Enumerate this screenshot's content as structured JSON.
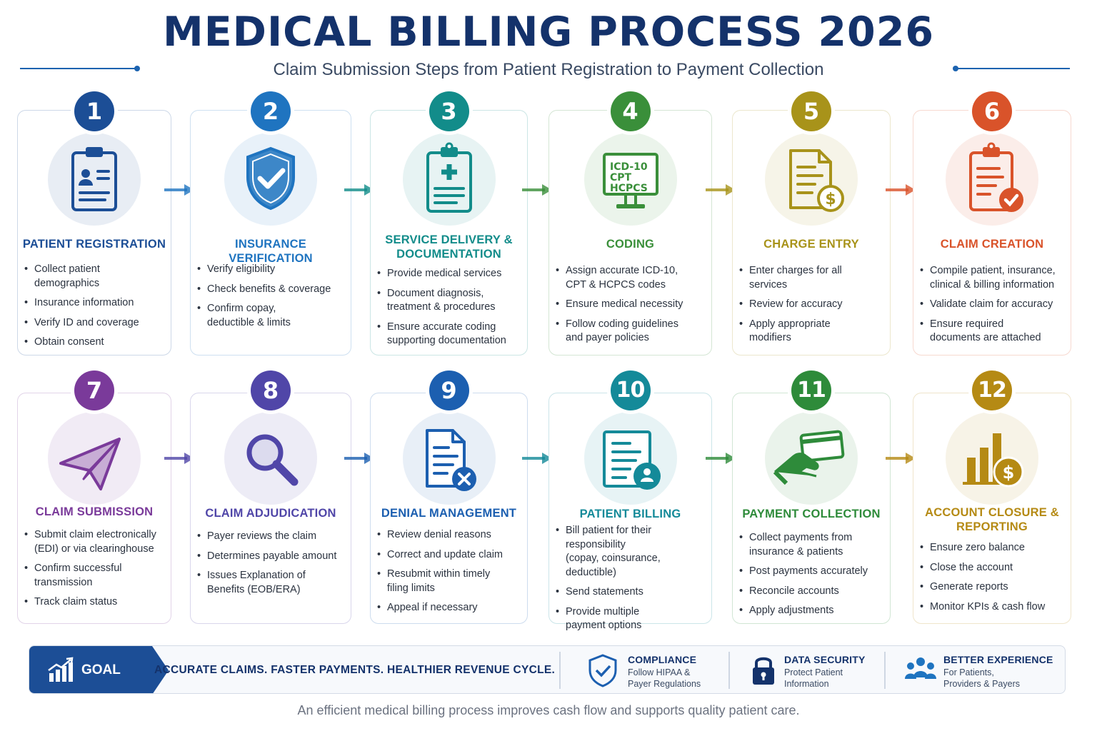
{
  "header": {
    "title": "MEDICAL BILLING PROCESS 2026",
    "subtitle": "Claim Submission Steps from Patient Registration to Payment Collection"
  },
  "steps": [
    {
      "number": "1",
      "title": "PATIENT REGISTRATION",
      "color": "#1c4e96",
      "icon": "clipboard-patient-icon",
      "bullets": [
        "Collect patient demographics",
        "Insurance information",
        "Verify ID and coverage",
        "Obtain consent"
      ]
    },
    {
      "number": "2",
      "title": "INSURANCE VERIFICATION",
      "color": "#1f74c0",
      "icon": "shield-check-icon",
      "bullets": [
        "Verify eligibility",
        "Check benefits & coverage",
        "Confirm copay,\ndeductible & limits"
      ]
    },
    {
      "number": "3",
      "title": "SERVICE DELIVERY &\nDOCUMENTATION",
      "color": "#128c8a",
      "icon": "medical-clipboard-icon",
      "bullets": [
        "Provide medical services",
        "Document diagnosis,\ntreatment & procedures",
        "Ensure accurate coding\nsupporting documentation"
      ]
    },
    {
      "number": "4",
      "title": "CODING",
      "color": "#3a8f3a",
      "icon": "coding-monitor-icon",
      "icon_text": [
        "ICD-10",
        "CPT",
        "HCPCS"
      ],
      "bullets": [
        "Assign accurate ICD-10,\nCPT & HCPCS codes",
        "Ensure medical necessity",
        "Follow coding guidelines\nand payer policies"
      ]
    },
    {
      "number": "5",
      "title": "CHARGE ENTRY",
      "color": "#a8931a",
      "icon": "invoice-dollar-icon",
      "bullets": [
        "Enter charges for all\nservices",
        "Review for accuracy",
        "Apply appropriate\nmodifiers"
      ]
    },
    {
      "number": "6",
      "title": "CLAIM CREATION",
      "color": "#d9532a",
      "icon": "clipboard-check-icon",
      "bullets": [
        "Compile patient, insurance,\nclinical & billing information",
        "Validate claim for accuracy",
        "Ensure required\ndocuments are attached"
      ]
    },
    {
      "number": "7",
      "title": "CLAIM SUBMISSION",
      "color": "#7a3a9a",
      "icon": "paper-plane-icon",
      "bullets": [
        "Submit claim electronically\n(EDI) or via clearinghouse",
        "Confirm successful\ntransmission",
        "Track claim status"
      ]
    },
    {
      "number": "8",
      "title": "CLAIM ADJUDICATION",
      "color": "#5046a8",
      "icon": "magnifier-icon",
      "bullets": [
        "Payer reviews the claim",
        "Determines payable amount",
        "Issues Explanation of\nBenefits (EOB/ERA)"
      ]
    },
    {
      "number": "9",
      "title": "DENIAL MANAGEMENT",
      "color": "#1c5fb0",
      "icon": "document-x-icon",
      "bullets": [
        "Review denial reasons",
        "Correct and update claim",
        "Resubmit within timely\nfiling limits",
        "Appeal if necessary"
      ]
    },
    {
      "number": "10",
      "title": "PATIENT BILLING",
      "color": "#148a99",
      "icon": "bill-person-icon",
      "bullets": [
        "Bill patient for their\nresponsibility\n(copay, coinsurance,\ndeductible)",
        "Send statements",
        "Provide multiple\npayment options"
      ]
    },
    {
      "number": "11",
      "title": "PAYMENT COLLECTION",
      "color": "#2e8b3a",
      "icon": "card-payment-icon",
      "bullets": [
        "Collect payments from\ninsurance & patients",
        "Post payments accurately",
        "Reconcile accounts",
        "Apply adjustments"
      ]
    },
    {
      "number": "12",
      "title": "ACCOUNT CLOSURE &\nREPORTING",
      "color": "#b58a14",
      "icon": "chart-dollar-icon",
      "bullets": [
        "Ensure zero balance",
        "Close the account",
        "Generate reports",
        "Monitor KPIs & cash flow"
      ]
    }
  ],
  "goal": {
    "label": "GOAL",
    "text": "ACCURATE CLAIMS. FASTER PAYMENTS. HEALTHIER REVENUE CYCLE."
  },
  "features": [
    {
      "title": "COMPLIANCE",
      "subtitle": "Follow HIPAA &\nPayer Regulations",
      "icon": "shield-check-icon"
    },
    {
      "title": "DATA SECURITY",
      "subtitle": "Protect Patient\nInformation",
      "icon": "lock-icon"
    },
    {
      "title": "BETTER EXPERIENCE",
      "subtitle": "For Patients,\nProviders & Payers",
      "icon": "people-icon"
    }
  ],
  "footer": "An efficient medical billing process improves cash flow and supports quality patient care."
}
